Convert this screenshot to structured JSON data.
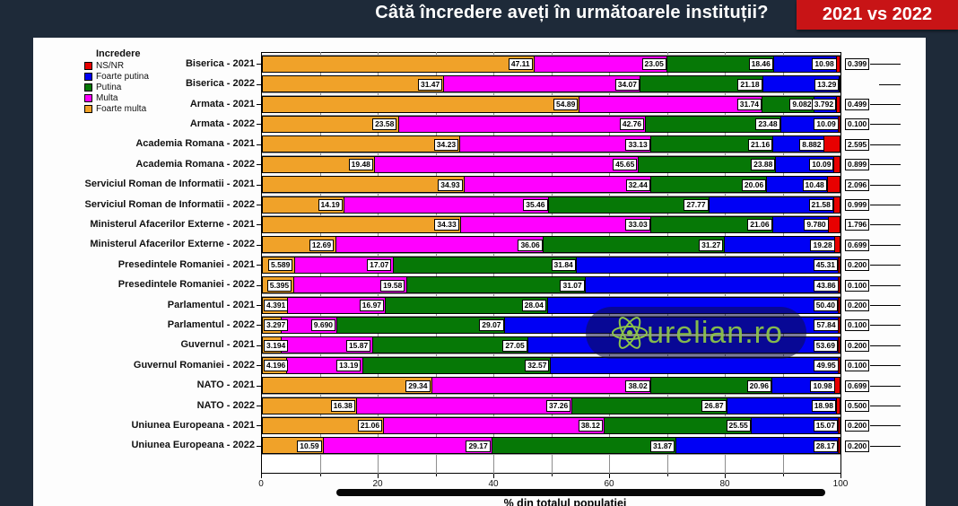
{
  "header": {
    "title": "Câtă încredere aveți în următoarele instituții?",
    "badge_label": "2021 vs 2022",
    "badge_color": "#c81416"
  },
  "legend": {
    "title": "Incredere",
    "items": [
      {
        "label": "NS/NR",
        "color": "#e80000"
      },
      {
        "label": "Foarte putina",
        "color": "#0000f5"
      },
      {
        "label": "Putina",
        "color": "#067806"
      },
      {
        "label": "Multa",
        "color": "#ff00ff"
      },
      {
        "label": "Foarte multa",
        "color": "#f0a229"
      }
    ]
  },
  "chart_data": {
    "type": "bar",
    "orientation": "horizontal",
    "stacked": true,
    "unit": "% of total population",
    "xlabel": "% din totalul populatiei",
    "xlim": [
      0,
      100
    ],
    "x_major_ticks": [
      0,
      20,
      40,
      60,
      80,
      100
    ],
    "x_minor_step": 10,
    "grid": "vertical",
    "legend_position": "top-left",
    "series": [
      {
        "key": "foarte_multa",
        "name": "Foarte multa",
        "color": "#f0a229"
      },
      {
        "key": "multa",
        "name": "Multa",
        "color": "#ff00ff"
      },
      {
        "key": "putina",
        "name": "Putina",
        "color": "#067806"
      },
      {
        "key": "foarte_putina",
        "name": "Foarte putina",
        "color": "#0000f5"
      },
      {
        "key": "ns_nr",
        "name": "NS/NR",
        "color": "#e80000"
      }
    ],
    "rows": [
      {
        "label": "Biserica - 2021",
        "foarte_multa": "47.11",
        "multa": "23.05",
        "putina": "18.46",
        "foarte_putina": "10.98",
        "ns_nr": "0.399"
      },
      {
        "label": "Biserica - 2022",
        "foarte_multa": "31.47",
        "multa": "34.07",
        "putina": "21.18",
        "foarte_putina": "13.29",
        "ns_nr": null
      },
      {
        "label": "Armata - 2021",
        "foarte_multa": "54.89",
        "multa": "31.74",
        "putina": "9.082",
        "foarte_putina": "3.792",
        "ns_nr": "0.499"
      },
      {
        "label": "Armata - 2022",
        "foarte_multa": "23.58",
        "multa": "42.76",
        "putina": "23.48",
        "foarte_putina": "10.09",
        "ns_nr": "0.100"
      },
      {
        "label": "Academia Romana - 2021",
        "foarte_multa": "34.23",
        "multa": "33.13",
        "putina": "21.16",
        "foarte_putina": "8.882",
        "ns_nr": "2.595"
      },
      {
        "label": "Academia Romana - 2022",
        "foarte_multa": "19.48",
        "multa": "45.65",
        "putina": "23.88",
        "foarte_putina": "10.09",
        "ns_nr": "0.899"
      },
      {
        "label": "Serviciul Roman de Informatii - 2021",
        "foarte_multa": "34.93",
        "multa": "32.44",
        "putina": "20.06",
        "foarte_putina": "10.48",
        "ns_nr": "2.096"
      },
      {
        "label": "Serviciul Roman de Informatii - 2022",
        "foarte_multa": "14.19",
        "multa": "35.46",
        "putina": "27.77",
        "foarte_putina": "21.58",
        "ns_nr": "0.999"
      },
      {
        "label": "Ministerul Afacerilor Externe - 2021",
        "foarte_multa": "34.33",
        "multa": "33.03",
        "putina": "21.06",
        "foarte_putina": "9.780",
        "ns_nr": "1.796"
      },
      {
        "label": "Ministerul Afacerilor Externe - 2022",
        "foarte_multa": "12.69",
        "multa": "36.06",
        "putina": "31.27",
        "foarte_putina": "19.28",
        "ns_nr": "0.699"
      },
      {
        "label": "Presedintele Romaniei - 2021",
        "foarte_multa": "5.589",
        "multa": "17.07",
        "putina": "31.84",
        "foarte_putina": "45.31",
        "ns_nr": "0.200"
      },
      {
        "label": "Presedintele Romaniei - 2022",
        "foarte_multa": "5.395",
        "multa": "19.58",
        "putina": "31.07",
        "foarte_putina": "43.86",
        "ns_nr": "0.100"
      },
      {
        "label": "Parlamentul - 2021",
        "foarte_multa": "4.391",
        "multa": "16.97",
        "putina": "28.04",
        "foarte_putina": "50.40",
        "ns_nr": "0.200"
      },
      {
        "label": "Parlamentul - 2022",
        "foarte_multa": "3.297",
        "multa": "9.690",
        "putina": "29.07",
        "foarte_putina": "57.84",
        "ns_nr": "0.100"
      },
      {
        "label": "Guvernul - 2021",
        "foarte_multa": "3.194",
        "multa": "15.87",
        "putina": "27.05",
        "foarte_putina": "53.69",
        "ns_nr": "0.200"
      },
      {
        "label": "Guvernul Romaniei - 2022",
        "foarte_multa": "4.196",
        "multa": "13.19",
        "putina": "32.57",
        "foarte_putina": "49.95",
        "ns_nr": "0.100"
      },
      {
        "label": "NATO - 2021",
        "foarte_multa": "29.34",
        "multa": "38.02",
        "putina": "20.96",
        "foarte_putina": "10.98",
        "ns_nr": "0.699"
      },
      {
        "label": "NATO - 2022",
        "foarte_multa": "16.38",
        "multa": "37.26",
        "putina": "26.87",
        "foarte_putina": "18.98",
        "ns_nr": "0.500"
      },
      {
        "label": "Uniunea Europeana - 2021",
        "foarte_multa": "21.06",
        "multa": "38.12",
        "putina": "25.55",
        "foarte_putina": "15.07",
        "ns_nr": "0.200"
      },
      {
        "label": "Uniunea Europeana - 2022",
        "foarte_multa": "10.59",
        "multa": "29.17",
        "putina": "31.87",
        "foarte_putina": "28.17",
        "ns_nr": "0.200"
      }
    ]
  },
  "watermark": {
    "text": "Aurelian.ro",
    "text_after_icon": "urelian.ro"
  }
}
